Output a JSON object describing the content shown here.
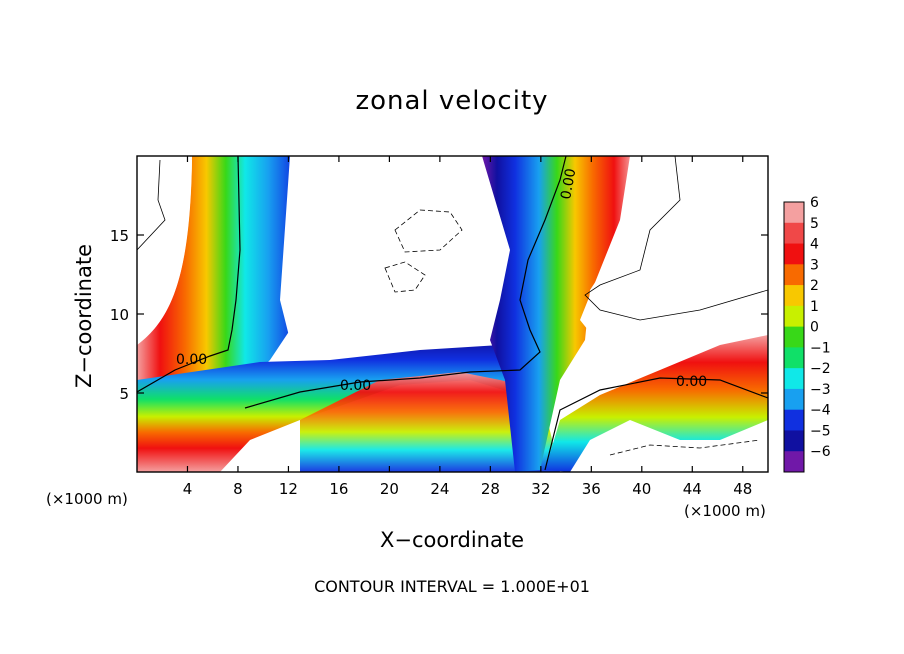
{
  "chart_data": {
    "type": "heatmap",
    "title": "zonal velocity",
    "xlabel": "X−coordinate",
    "ylabel": "Z−coordinate",
    "x_unit_label": "(×1000 m)",
    "y_unit_label": "(×1000 m)",
    "xlim": [
      0,
      50
    ],
    "ylim": [
      0,
      20
    ],
    "x_ticks": [
      4,
      8,
      12,
      16,
      20,
      24,
      28,
      32,
      36,
      40,
      44,
      48
    ],
    "y_ticks": [
      5,
      10,
      15
    ],
    "colorbar": {
      "levels": [
        6,
        5,
        4,
        3,
        2,
        1,
        0,
        -1,
        -2,
        -3,
        -4,
        -5,
        -6
      ],
      "labels": [
        "6",
        "5",
        "4",
        "3",
        "2",
        "1",
        "0",
        "−1",
        "−2",
        "−3",
        "−4",
        "−5",
        "−6"
      ],
      "colors": [
        "#f4a0a0",
        "#f04848",
        "#f01010",
        "#f86a00",
        "#f8c800",
        "#c8f000",
        "#38d818",
        "#10e068",
        "#10e8e8",
        "#18a0f0",
        "#1030e0",
        "#1010a0",
        "#7018a8"
      ]
    },
    "contour_label": "0.00",
    "contour_note": "CONTOUR INTERVAL = 1.000E+01"
  }
}
